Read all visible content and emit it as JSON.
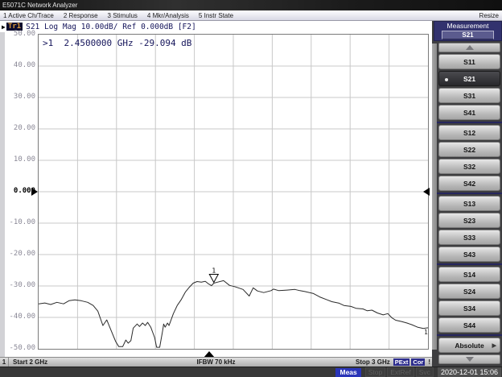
{
  "window": {
    "title": "E5071C Network Analyzer",
    "resize_label": "Resize"
  },
  "menu_bar": {
    "items": [
      "1 Active Ch/Trace",
      "2 Response",
      "3 Stimulus",
      "4 Mkr/Analysis",
      "5 Instr State"
    ]
  },
  "trace_bar": {
    "arrow": "▶",
    "trace_badge": "Tr1",
    "summary": "S21 Log Mag 10.00dB/ Ref 0.000dB [F2]"
  },
  "marker_readout": ">1  2.4500000 GHz -29.094 dB",
  "y_axis": {
    "labels": [
      "50.00",
      "40.00",
      "30.00",
      "20.00",
      "10.00",
      "0.000",
      "-10.00",
      "-20.00",
      "-30.00",
      "-40.00",
      "-50.00"
    ],
    "ref_index": 5
  },
  "sidebar": {
    "header_label": "Measurement",
    "header_value": "S21",
    "selected": "S21",
    "groups": [
      [
        "S11",
        "S21",
        "S31",
        "S41"
      ],
      [
        "S12",
        "S22",
        "S32",
        "S42"
      ],
      [
        "S13",
        "S23",
        "S33",
        "S43"
      ],
      [
        "S14",
        "S24",
        "S34",
        "S44"
      ]
    ],
    "absolute_label": "Absolute"
  },
  "channel_bar": {
    "channel_number": "1",
    "start_label": "Start 2 GHz",
    "ifbw_label": "IFBW 70 kHz",
    "stop_label": "Stop 3 GHz",
    "badges": [
      "PExt",
      "Cor"
    ],
    "alert": "!"
  },
  "status_bar": {
    "active_label": "Meas",
    "inactive_labels": [
      "Stop",
      "ExtRef",
      "Svc"
    ],
    "datetime": "2020-12-01 15:06"
  },
  "colors": {
    "header_navy": "#32326e",
    "badge_blue": "#2d2d8e",
    "status_active_blue": "#2a35b8",
    "trace_badge_text": "#dd9b3a",
    "grid_gray": "#c8c8c8",
    "trace_line": "#2a2a2a"
  },
  "chart_data": {
    "type": "line",
    "title": "S21 Log Mag 10.00dB/ Ref 0.000dB",
    "x_start_ghz": 2.0,
    "x_stop_ghz": 3.0,
    "ylim": [
      -50,
      50
    ],
    "y_units": "dB",
    "ref_level_db": 0,
    "scale_db_per_div": 10,
    "grid": {
      "x_divs": 10,
      "y_divs": 10
    },
    "marker": {
      "number": "1",
      "freq_ghz": 2.45,
      "value_db": -29.094
    },
    "trace_number_label": "1",
    "points": [
      [
        2.0,
        -35.7
      ],
      [
        2.016,
        -35.4
      ],
      [
        2.031,
        -35.9
      ],
      [
        2.047,
        -35.2
      ],
      [
        2.064,
        -35.7
      ],
      [
        2.078,
        -34.7
      ],
      [
        2.093,
        -34.4
      ],
      [
        2.109,
        -34.7
      ],
      [
        2.126,
        -35.2
      ],
      [
        2.14,
        -36.2
      ],
      [
        2.152,
        -38.0
      ],
      [
        2.165,
        -42.6
      ],
      [
        2.175,
        -40.8
      ],
      [
        2.187,
        -44.4
      ],
      [
        2.198,
        -47.7
      ],
      [
        2.206,
        -49.3
      ],
      [
        2.216,
        -49.3
      ],
      [
        2.224,
        -47.2
      ],
      [
        2.23,
        -48.2
      ],
      [
        2.237,
        -47.4
      ],
      [
        2.243,
        -43.4
      ],
      [
        2.253,
        -42.1
      ],
      [
        2.259,
        -42.9
      ],
      [
        2.267,
        -41.8
      ],
      [
        2.274,
        -42.6
      ],
      [
        2.28,
        -41.6
      ],
      [
        2.288,
        -43.1
      ],
      [
        2.298,
        -46.4
      ],
      [
        2.303,
        -49.5
      ],
      [
        2.311,
        -49.5
      ],
      [
        2.319,
        -43.9
      ],
      [
        2.321,
        -42.1
      ],
      [
        2.325,
        -43.1
      ],
      [
        2.331,
        -41.8
      ],
      [
        2.335,
        -42.6
      ],
      [
        2.346,
        -38.8
      ],
      [
        2.356,
        -36.2
      ],
      [
        2.366,
        -34.4
      ],
      [
        2.377,
        -31.9
      ],
      [
        2.387,
        -30.4
      ],
      [
        2.397,
        -29.1
      ],
      [
        2.407,
        -28.6
      ],
      [
        2.418,
        -28.8
      ],
      [
        2.428,
        -28.5
      ],
      [
        2.436,
        -29.3
      ],
      [
        2.444,
        -29.9
      ],
      [
        2.45,
        -29.094
      ],
      [
        2.459,
        -28.8
      ],
      [
        2.475,
        -28.3
      ],
      [
        2.49,
        -29.8
      ],
      [
        2.506,
        -30.3
      ],
      [
        2.525,
        -31.1
      ],
      [
        2.541,
        -33.2
      ],
      [
        2.551,
        -30.6
      ],
      [
        2.562,
        -31.6
      ],
      [
        2.578,
        -32.1
      ],
      [
        2.597,
        -31.5
      ],
      [
        2.603,
        -31.0
      ],
      [
        2.617,
        -31.5
      ],
      [
        2.638,
        -31.3
      ],
      [
        2.658,
        -31.1
      ],
      [
        2.671,
        -31.5
      ],
      [
        2.685,
        -31.8
      ],
      [
        2.706,
        -32.4
      ],
      [
        2.722,
        -33.5
      ],
      [
        2.741,
        -34.4
      ],
      [
        2.753,
        -35.0
      ],
      [
        2.772,
        -35.5
      ],
      [
        2.784,
        -36.2
      ],
      [
        2.802,
        -36.5
      ],
      [
        2.815,
        -37.1
      ],
      [
        2.833,
        -37.3
      ],
      [
        2.844,
        -37.9
      ],
      [
        2.856,
        -37.7
      ],
      [
        2.87,
        -38.6
      ],
      [
        2.885,
        -39.2
      ],
      [
        2.897,
        -38.8
      ],
      [
        2.907,
        -40.1
      ],
      [
        2.917,
        -40.9
      ],
      [
        2.932,
        -41.3
      ],
      [
        2.946,
        -41.8
      ],
      [
        2.958,
        -42.3
      ],
      [
        2.973,
        -43.1
      ],
      [
        2.988,
        -43.5
      ],
      [
        3.0,
        -43.3
      ]
    ]
  }
}
